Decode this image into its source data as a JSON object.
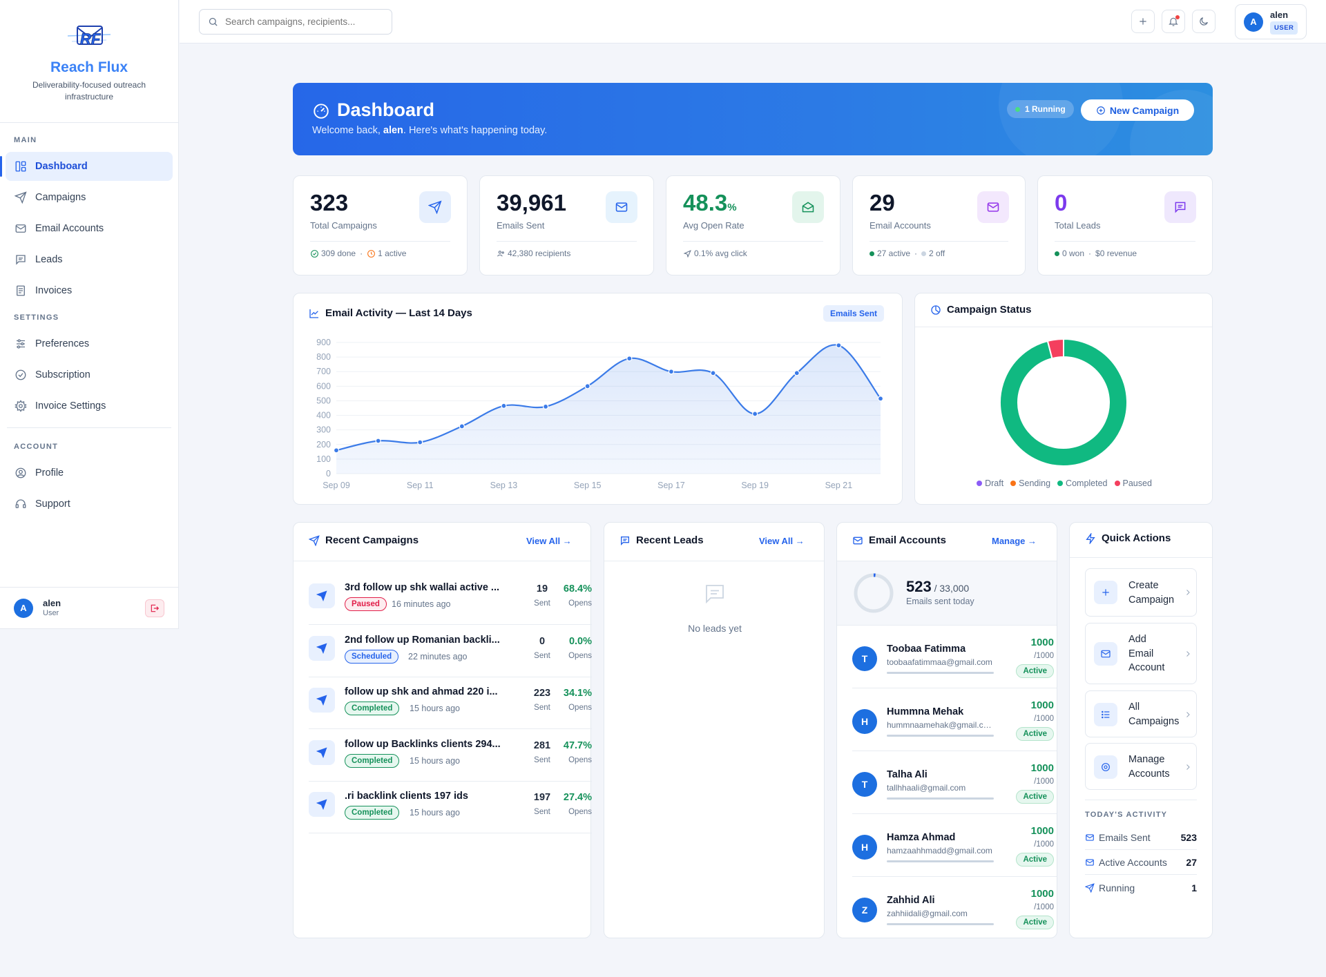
{
  "app": {
    "name": "Reach Flux",
    "tagline": "Deliverability-focused outreach infrastructure",
    "logo_text": "RF"
  },
  "sidebar": {
    "main_label": "MAIN",
    "main_items": [
      {
        "label": "Dashboard",
        "icon": "dashboard-icon",
        "active": true
      },
      {
        "label": "Campaigns",
        "icon": "send-icon"
      },
      {
        "label": "Email Accounts",
        "icon": "mail-icon"
      },
      {
        "label": "Leads",
        "icon": "message-icon"
      },
      {
        "label": "Invoices",
        "icon": "invoice-icon"
      }
    ],
    "settings_label": "SETTINGS",
    "settings_items": [
      {
        "label": "Preferences",
        "icon": "sliders-icon"
      },
      {
        "label": "Subscription",
        "icon": "check-circle-icon"
      },
      {
        "label": "Invoice Settings",
        "icon": "gear-icon"
      }
    ],
    "account_label": "ACCOUNT",
    "account_items": [
      {
        "label": "Profile",
        "icon": "user-circle-icon"
      },
      {
        "label": "Support",
        "icon": "headset-icon"
      }
    ],
    "user": {
      "initial": "A",
      "name": "alen",
      "role": "User"
    }
  },
  "topbar": {
    "search_placeholder": "Search campaigns, recipients...",
    "user": {
      "initial": "A",
      "name": "alen",
      "role": "USER"
    }
  },
  "hero": {
    "title": "Dashboard",
    "welcome_prefix": "Welcome back, ",
    "user": "alen",
    "welcome_suffix": ". Here's what's happening today.",
    "running_badge": "1 Running",
    "new_campaign": "New Campaign"
  },
  "stats": [
    {
      "value": "323",
      "label": "Total Campaigns",
      "foot1": "309 done",
      "foot2": "1 active",
      "accent": "#2563eb"
    },
    {
      "value": "39,961",
      "label": "Emails Sent",
      "foot1": "42,380 recipients",
      "accent": "#2563eb"
    },
    {
      "value": "48.3",
      "unit": "%",
      "label": "Avg Open Rate",
      "foot1": "0.1% avg click",
      "accent": "#15915a"
    },
    {
      "value": "29",
      "label": "Email Accounts",
      "foot1": "27 active",
      "foot2": "2 off",
      "accent": "#9333ea"
    },
    {
      "value": "0",
      "label": "Total Leads",
      "foot1": "0 won",
      "foot2": "$0 revenue",
      "accent": "#7c3aed"
    }
  ],
  "activity": {
    "title": "Email Activity — Last 14 Days",
    "pill": "Emails Sent",
    "chart_data": {
      "type": "area",
      "title": "Email Activity — Last 14 Days",
      "series": [
        {
          "name": "Emails Sent",
          "values": [
            160,
            225,
            215,
            325,
            465,
            460,
            600,
            790,
            700,
            690,
            410,
            690,
            880,
            515
          ]
        }
      ],
      "x": [
        "Sep 09",
        "Sep 10",
        "Sep 11",
        "Sep 12",
        "Sep 13",
        "Sep 14",
        "Sep 15",
        "Sep 16",
        "Sep 17",
        "Sep 18",
        "Sep 19",
        "Sep 20",
        "Sep 21",
        "Sep 22"
      ],
      "xticks": [
        "Sep 09",
        "Sep 11",
        "Sep 13",
        "Sep 15",
        "Sep 17",
        "Sep 19",
        "Sep 21"
      ],
      "yticks": [
        0,
        100,
        200,
        300,
        400,
        500,
        600,
        700,
        800,
        900
      ],
      "ylim": [
        0,
        900
      ],
      "grid": true,
      "color": "#3b7be8"
    }
  },
  "campaign_status": {
    "title": "Campaign Status",
    "chart_data": {
      "type": "pie",
      "categories": [
        "Draft",
        "Sending",
        "Completed",
        "Paused"
      ],
      "values": [
        0,
        0,
        309,
        13
      ],
      "colors": [
        "#8b5cf6",
        "#f97316",
        "#10b981",
        "#f43f5e"
      ],
      "legend": "bottom"
    }
  },
  "recent_campaigns": {
    "title": "Recent Campaigns",
    "link": "View All →",
    "sent_label": "Sent",
    "opens_label": "Opens",
    "items": [
      {
        "name": "3rd follow up shk wallai active ...",
        "status": "Paused",
        "status_class": "b-paused",
        "time": "16 minutes ago",
        "sent": "19",
        "rate": "68.4%"
      },
      {
        "name": "2nd follow up Romanian backli...",
        "status": "Scheduled",
        "status_class": "b-scheduled",
        "time": "22 minutes ago",
        "sent": "0",
        "rate": "0.0%"
      },
      {
        "name": "follow up shk and ahmad 220 i...",
        "status": "Completed",
        "status_class": "b-completed",
        "time": "15 hours ago",
        "sent": "223",
        "rate": "34.1%"
      },
      {
        "name": "follow up Backlinks clients 294...",
        "status": "Completed",
        "status_class": "b-completed",
        "time": "15 hours ago",
        "sent": "281",
        "rate": "47.7%"
      },
      {
        "name": ".ri backlink clients 197 ids",
        "status": "Completed",
        "status_class": "b-completed",
        "time": "15 hours ago",
        "sent": "197",
        "rate": "27.4%"
      }
    ]
  },
  "recent_leads": {
    "title": "Recent Leads",
    "link": "View All →",
    "empty": "No leads yet"
  },
  "email_accounts": {
    "title": "Email Accounts",
    "link": "Manage →",
    "sent_today": "523",
    "limit": "/ 33,000",
    "sent_label": "Emails sent today",
    "progress": 0.016,
    "items": [
      {
        "initial": "T",
        "name": "Toobaa Fatimma",
        "email": "toobaafatimmaa@gmail.com",
        "value": "1000",
        "max": "/1000",
        "status": "Active"
      },
      {
        "initial": "H",
        "name": "Hummna Mehak",
        "email": "hummnaamehak@gmail.com",
        "value": "1000",
        "max": "/1000",
        "status": "Active"
      },
      {
        "initial": "T",
        "name": "Talha Ali",
        "email": "tallhhaali@gmail.com",
        "value": "1000",
        "max": "/1000",
        "status": "Active"
      },
      {
        "initial": "H",
        "name": "Hamza Ahmad",
        "email": "hamzaahhmadd@gmail.com",
        "value": "1000",
        "max": "/1000",
        "status": "Active"
      },
      {
        "initial": "Z",
        "name": "Zahhid Ali",
        "email": "zahhiidali@gmail.com",
        "value": "1000",
        "max": "/1000",
        "status": "Active"
      }
    ]
  },
  "quick_actions": {
    "title": "Quick Actions",
    "items": [
      {
        "label1": "Create",
        "label2": "Campaign",
        "icon": "plus-icon"
      },
      {
        "label1": "Add",
        "label2": "Email",
        "label3": "Account",
        "icon": "mail-icon"
      },
      {
        "label1": "All",
        "label2": "Campaigns",
        "icon": "list-icon"
      },
      {
        "label1": "Manage",
        "label2": "Accounts",
        "icon": "gear-icon"
      }
    ],
    "activity_label": "TODAY'S ACTIVITY",
    "activity": [
      {
        "label": "Emails Sent",
        "value": "523",
        "icon": "mail-icon"
      },
      {
        "label": "Active Accounts",
        "value": "27",
        "icon": "mail-icon"
      },
      {
        "label": "Running",
        "value": "1",
        "icon": "send-icon"
      }
    ]
  }
}
